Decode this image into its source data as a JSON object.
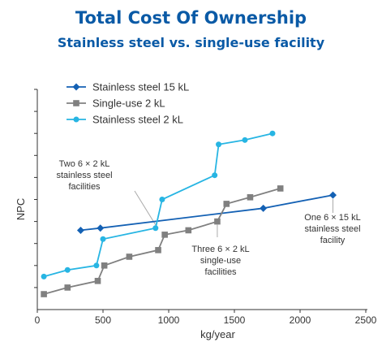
{
  "chart_data": {
    "type": "line",
    "title": "Total Cost Of Ownership",
    "subtitle": "Stainless steel vs. single-use facility",
    "xlabel": "kg/year",
    "ylabel": "NPC",
    "xlim": [
      0,
      2500
    ],
    "ylim": [
      0,
      100
    ],
    "x_ticks": [
      0,
      500,
      1000,
      1500,
      2000,
      2500
    ],
    "y_tick_count": 10,
    "grid": false,
    "legend_position": "top-left",
    "series": [
      {
        "name": "Stainless steel 15 kL",
        "color": "#1461b4",
        "marker": "diamond",
        "points": [
          [
            330,
            36
          ],
          [
            480,
            37
          ],
          [
            1720,
            46
          ],
          [
            2250,
            52
          ]
        ]
      },
      {
        "name": "Single-use 2 kL",
        "color": "#808080",
        "marker": "square",
        "points": [
          [
            50,
            7
          ],
          [
            230,
            10
          ],
          [
            460,
            13
          ],
          [
            510,
            20
          ],
          [
            700,
            24
          ],
          [
            920,
            27
          ],
          [
            970,
            34
          ],
          [
            1150,
            36
          ],
          [
            1370,
            40
          ],
          [
            1440,
            48
          ],
          [
            1620,
            51
          ],
          [
            1850,
            55
          ]
        ]
      },
      {
        "name": "Stainless steel 2 kL",
        "color": "#27b5e3",
        "marker": "circle",
        "points": [
          [
            50,
            15
          ],
          [
            230,
            18
          ],
          [
            450,
            20
          ],
          [
            500,
            32
          ],
          [
            900,
            37
          ],
          [
            950,
            50
          ],
          [
            1350,
            61
          ],
          [
            1380,
            75
          ],
          [
            1580,
            77
          ],
          [
            1790,
            80
          ]
        ]
      }
    ],
    "annotations": [
      "Two 6 × 2 kL stainless steel facilities",
      "Three 6 × 2 kL single-use facilities",
      "One 6 × 15 kL stainless steel facility"
    ]
  },
  "annotation_lines": [
    [
      "Two 6 × 2 kL",
      "stainless steel",
      "facilities"
    ],
    [
      "Three 6 × 2 kL",
      "single-use",
      "facilities"
    ],
    [
      "One 6 × 15 kL",
      "stainless steel",
      "facility"
    ]
  ]
}
